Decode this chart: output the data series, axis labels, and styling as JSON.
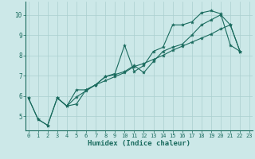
{
  "xlabel": "Humidex (Indice chaleur)",
  "xlim": [
    -0.3,
    23.3
  ],
  "ylim": [
    4.3,
    10.65
  ],
  "xticks": [
    0,
    1,
    2,
    3,
    4,
    5,
    6,
    7,
    8,
    9,
    10,
    11,
    12,
    13,
    14,
    15,
    16,
    17,
    18,
    19,
    20,
    21,
    22,
    23
  ],
  "yticks": [
    5,
    6,
    7,
    8,
    9,
    10
  ],
  "bg_color": "#cce8e8",
  "line_color": "#1a6b5e",
  "grid_color": "#aacfcf",
  "line1_x": [
    0,
    1,
    2,
    3,
    4,
    5,
    6,
    7,
    8,
    9,
    10,
    11,
    12,
    13,
    14,
    15,
    16,
    17,
    18,
    19,
    20,
    21,
    22
  ],
  "line1_y": [
    5.9,
    4.85,
    4.55,
    5.9,
    5.5,
    6.3,
    6.3,
    6.55,
    6.95,
    7.1,
    8.5,
    7.2,
    7.5,
    8.2,
    8.4,
    9.5,
    9.5,
    9.65,
    10.1,
    10.2,
    10.05,
    8.5,
    8.2
  ],
  "line2_x": [
    0,
    1,
    2,
    3,
    4,
    5,
    6,
    7,
    8,
    9,
    10,
    11,
    12,
    13,
    14,
    15,
    16,
    17,
    18,
    19,
    20,
    21,
    22
  ],
  "line2_y": [
    5.9,
    4.85,
    4.55,
    5.9,
    5.5,
    5.95,
    6.25,
    6.55,
    6.75,
    6.95,
    7.15,
    7.45,
    7.6,
    7.8,
    8.0,
    8.25,
    8.45,
    8.65,
    8.85,
    9.05,
    9.3,
    9.5,
    8.2
  ],
  "line3_x": [
    3,
    4,
    5,
    6,
    7,
    8,
    9,
    10,
    11,
    12,
    13,
    14,
    15,
    16,
    17,
    18,
    19,
    20,
    21,
    22
  ],
  "line3_y": [
    5.9,
    5.5,
    5.6,
    6.3,
    6.55,
    6.95,
    7.05,
    7.2,
    7.5,
    7.15,
    7.7,
    8.2,
    8.4,
    8.55,
    9.0,
    9.5,
    9.75,
    10.0,
    9.5,
    8.2
  ]
}
